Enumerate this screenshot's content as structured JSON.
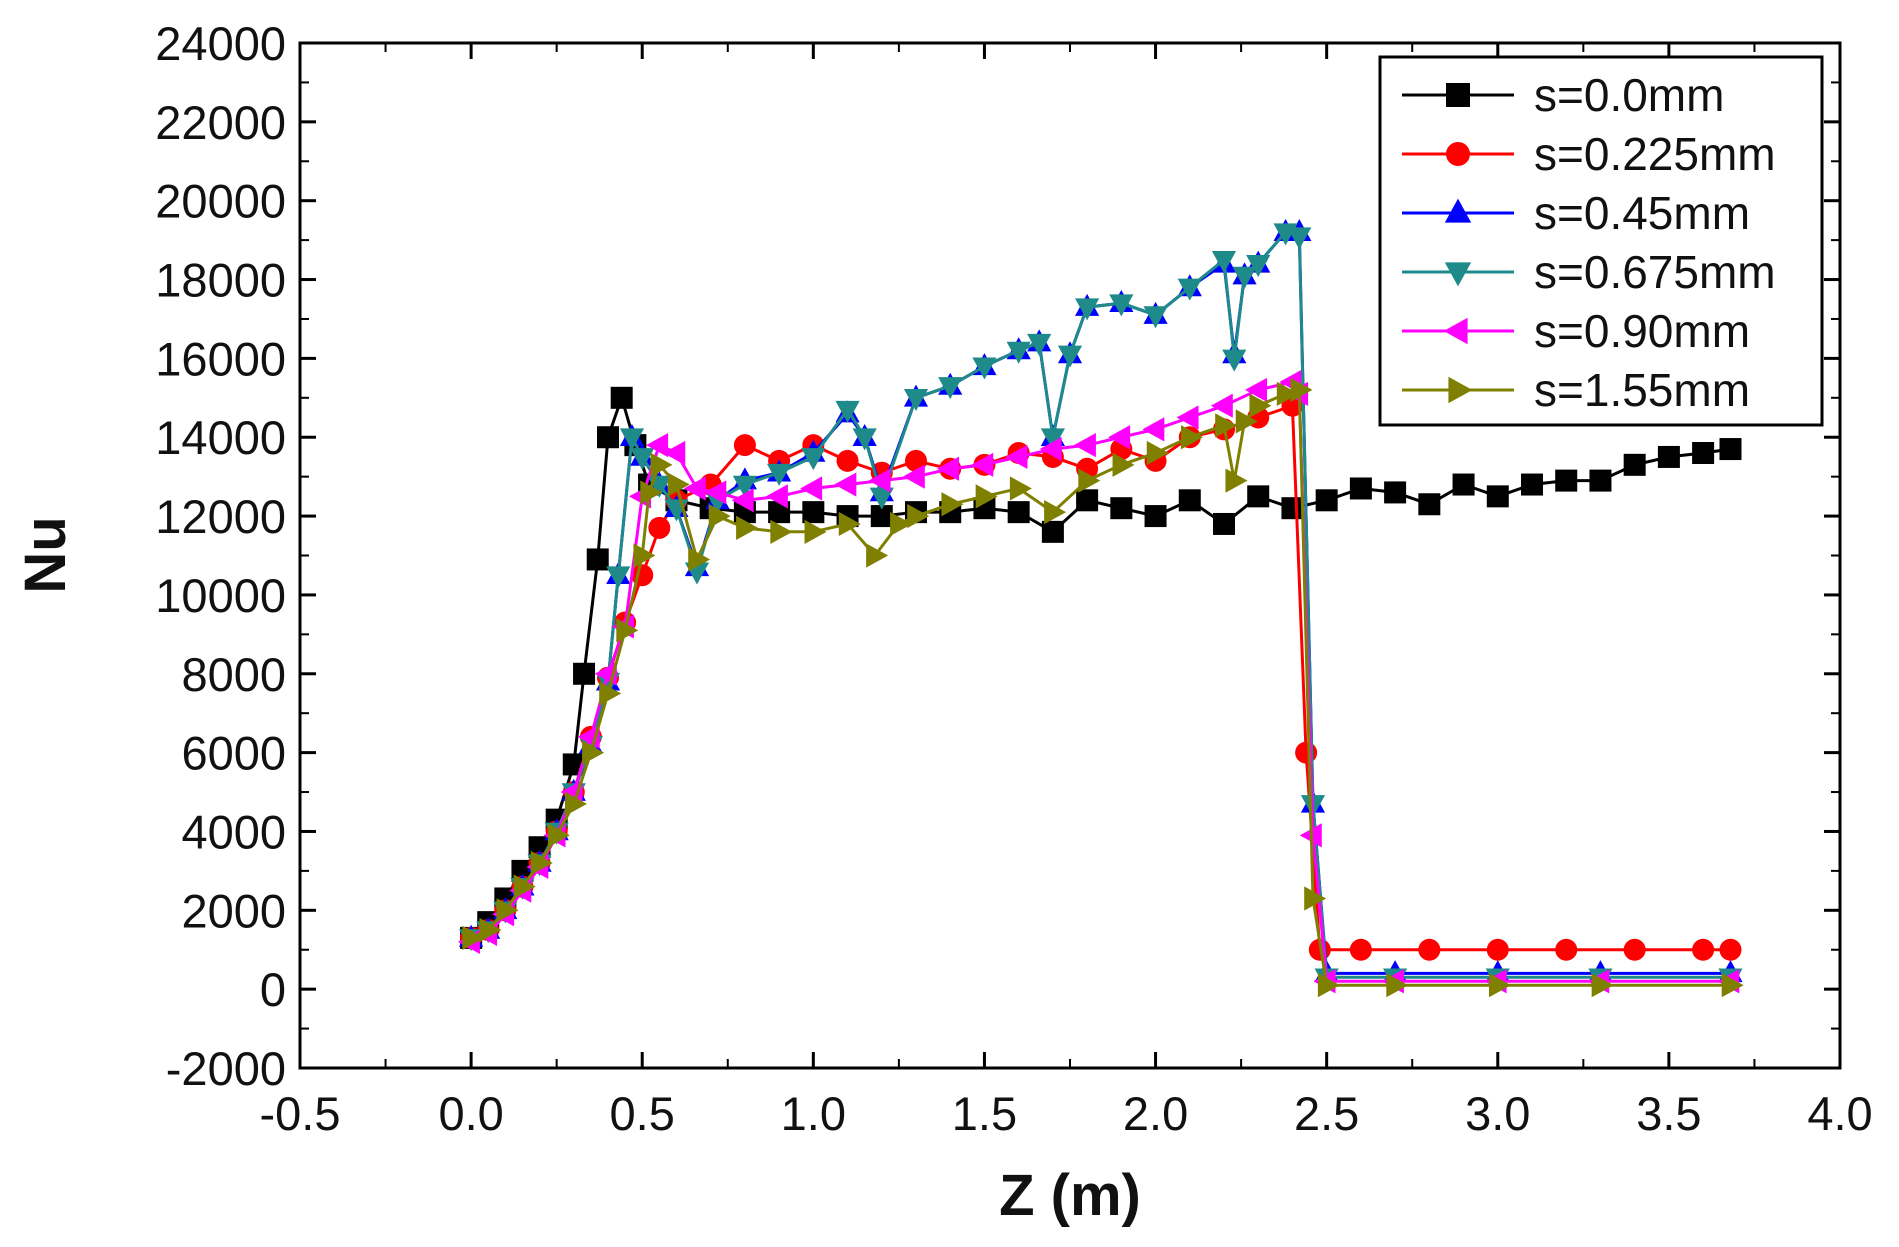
{
  "chart_data": {
    "type": "line",
    "title": "",
    "xlabel": "Z (m)",
    "ylabel": "Nu",
    "xlim": [
      -0.5,
      4.0
    ],
    "ylim": [
      -2000,
      24000
    ],
    "xticks": [
      -0.5,
      0.0,
      0.5,
      1.0,
      1.5,
      2.0,
      2.5,
      3.0,
      3.5,
      4.0
    ],
    "yticks": [
      -2000,
      0,
      2000,
      4000,
      6000,
      8000,
      10000,
      12000,
      14000,
      16000,
      18000,
      20000,
      22000,
      24000
    ],
    "xtick_labels": [
      "-0.5",
      "0.0",
      "0.5",
      "1.0",
      "1.5",
      "2.0",
      "2.5",
      "3.0",
      "3.5",
      "4.0"
    ],
    "ytick_labels": [
      "-2000",
      "0",
      "2000",
      "4000",
      "6000",
      "8000",
      "10000",
      "12000",
      "14000",
      "16000",
      "18000",
      "20000",
      "22000",
      "24000"
    ],
    "grid": false,
    "legend_position": "top-right",
    "series": [
      {
        "name": "s=0.0mm",
        "color": "#000000",
        "marker": "square",
        "x": [
          0.0,
          0.05,
          0.1,
          0.15,
          0.2,
          0.25,
          0.3,
          0.33,
          0.37,
          0.4,
          0.44,
          0.48,
          0.52,
          0.6,
          0.7,
          0.8,
          0.9,
          1.0,
          1.1,
          1.2,
          1.3,
          1.4,
          1.5,
          1.6,
          1.7,
          1.8,
          1.9,
          2.0,
          2.1,
          2.2,
          2.3,
          2.4,
          2.5,
          2.6,
          2.7,
          2.8,
          2.9,
          3.0,
          3.1,
          3.2,
          3.3,
          3.4,
          3.5,
          3.6,
          3.68
        ],
        "y": [
          1300,
          1700,
          2300,
          3000,
          3600,
          4300,
          5700,
          8000,
          10900,
          14000,
          15000,
          13800,
          12800,
          12400,
          12200,
          12100,
          12100,
          12100,
          12000,
          12000,
          12100,
          12100,
          12200,
          12100,
          11600,
          12400,
          12200,
          12000,
          12400,
          11800,
          12500,
          12200,
          12400,
          12700,
          12600,
          12300,
          12800,
          12500,
          12800,
          12900,
          12900,
          13300,
          13500,
          13600,
          13700
        ]
      },
      {
        "name": "s=0.225mm",
        "color": "#ff0000",
        "marker": "circle",
        "x": [
          0.0,
          0.05,
          0.1,
          0.15,
          0.2,
          0.25,
          0.3,
          0.35,
          0.4,
          0.45,
          0.5,
          0.55,
          0.6,
          0.7,
          0.8,
          0.9,
          1.0,
          1.1,
          1.2,
          1.3,
          1.4,
          1.5,
          1.6,
          1.7,
          1.8,
          1.9,
          2.0,
          2.1,
          2.2,
          2.3,
          2.4,
          2.44,
          2.48,
          2.6,
          2.8,
          3.0,
          3.2,
          3.4,
          3.6,
          3.68
        ],
        "y": [
          1300,
          1500,
          2000,
          2600,
          3200,
          4000,
          5000,
          6400,
          7900,
          9300,
          10500,
          11700,
          12400,
          12800,
          13800,
          13400,
          13800,
          13400,
          13100,
          13400,
          13200,
          13300,
          13600,
          13500,
          13200,
          13700,
          13400,
          14000,
          14200,
          14500,
          14800,
          6000,
          1000,
          1000,
          1000,
          1000,
          1000,
          1000,
          1000,
          1000
        ]
      },
      {
        "name": "s=0.45mm",
        "color": "#0000ff",
        "marker": "triangle-up",
        "x": [
          0.0,
          0.05,
          0.1,
          0.15,
          0.2,
          0.25,
          0.3,
          0.35,
          0.4,
          0.43,
          0.47,
          0.5,
          0.55,
          0.6,
          0.66,
          0.72,
          0.8,
          0.9,
          1.0,
          1.1,
          1.15,
          1.2,
          1.3,
          1.4,
          1.5,
          1.6,
          1.66,
          1.7,
          1.75,
          1.8,
          1.9,
          2.0,
          2.1,
          2.2,
          2.23,
          2.26,
          2.3,
          2.38,
          2.42,
          2.46,
          2.5,
          2.7,
          3.0,
          3.3,
          3.68
        ],
        "y": [
          1300,
          1500,
          2000,
          2600,
          3200,
          4000,
          5000,
          6200,
          7800,
          10500,
          14000,
          13500,
          12800,
          12200,
          10700,
          12400,
          12900,
          13100,
          13600,
          14600,
          14000,
          12600,
          15000,
          15300,
          15800,
          16200,
          16400,
          14000,
          16100,
          17300,
          17400,
          17100,
          17800,
          18400,
          16100,
          18100,
          18400,
          19200,
          19200,
          4700,
          400,
          400,
          400,
          400,
          400
        ]
      },
      {
        "name": "s=0.675mm",
        "color": "#1f8a8a",
        "marker": "triangle-down",
        "x": [
          0.0,
          0.05,
          0.1,
          0.15,
          0.2,
          0.25,
          0.3,
          0.35,
          0.4,
          0.43,
          0.47,
          0.5,
          0.55,
          0.6,
          0.66,
          0.72,
          0.8,
          0.9,
          1.0,
          1.1,
          1.15,
          1.2,
          1.3,
          1.4,
          1.5,
          1.6,
          1.66,
          1.7,
          1.75,
          1.8,
          1.9,
          2.0,
          2.1,
          2.2,
          2.23,
          2.26,
          2.3,
          2.38,
          2.42,
          2.46,
          2.5,
          2.7,
          3.0,
          3.3,
          3.68
        ],
        "y": [
          1300,
          1500,
          2000,
          2600,
          3200,
          4000,
          5000,
          6200,
          7800,
          10500,
          14000,
          13500,
          12800,
          12200,
          10600,
          12400,
          12800,
          13100,
          13500,
          14700,
          14000,
          12500,
          15000,
          15300,
          15800,
          16200,
          16400,
          14000,
          16100,
          17300,
          17400,
          17100,
          17800,
          18500,
          16000,
          18100,
          18400,
          19200,
          19100,
          4700,
          300,
          300,
          300,
          300,
          300
        ]
      },
      {
        "name": "s=0.90mm",
        "color": "#ff00ff",
        "marker": "triangle-left",
        "x": [
          0.0,
          0.05,
          0.1,
          0.15,
          0.2,
          0.25,
          0.3,
          0.35,
          0.4,
          0.45,
          0.5,
          0.55,
          0.6,
          0.66,
          0.72,
          0.8,
          0.9,
          1.0,
          1.1,
          1.2,
          1.3,
          1.4,
          1.5,
          1.6,
          1.7,
          1.8,
          1.9,
          2.0,
          2.1,
          2.2,
          2.3,
          2.4,
          2.42,
          2.46,
          2.5,
          2.7,
          3.0,
          3.3,
          3.68
        ],
        "y": [
          1200,
          1400,
          1900,
          2500,
          3100,
          3900,
          5000,
          6400,
          8000,
          9200,
          12500,
          13800,
          13600,
          12700,
          12600,
          12400,
          12500,
          12700,
          12800,
          12900,
          13000,
          13200,
          13300,
          13500,
          13700,
          13800,
          14000,
          14200,
          14500,
          14800,
          15200,
          15400,
          15100,
          3900,
          200,
          200,
          200,
          200,
          200
        ]
      },
      {
        "name": "s=1.55mm",
        "color": "#808000",
        "marker": "triangle-right",
        "x": [
          0.0,
          0.05,
          0.1,
          0.15,
          0.2,
          0.25,
          0.3,
          0.35,
          0.4,
          0.45,
          0.5,
          0.52,
          0.55,
          0.6,
          0.66,
          0.72,
          0.8,
          0.9,
          1.0,
          1.1,
          1.18,
          1.25,
          1.3,
          1.4,
          1.5,
          1.6,
          1.7,
          1.8,
          1.9,
          2.0,
          2.1,
          2.2,
          2.23,
          2.26,
          2.3,
          2.38,
          2.42,
          2.46,
          2.5,
          2.7,
          3.0,
          3.3,
          3.68
        ],
        "y": [
          1300,
          1500,
          2000,
          2600,
          3200,
          3900,
          4700,
          6000,
          7500,
          9100,
          11000,
          12600,
          13300,
          12800,
          10900,
          12000,
          11700,
          11600,
          11600,
          11800,
          11000,
          11800,
          12000,
          12300,
          12500,
          12700,
          12100,
          12900,
          13300,
          13600,
          14000,
          14300,
          12900,
          14400,
          14800,
          15100,
          15200,
          2300,
          100,
          100,
          100,
          100,
          100
        ]
      }
    ]
  }
}
